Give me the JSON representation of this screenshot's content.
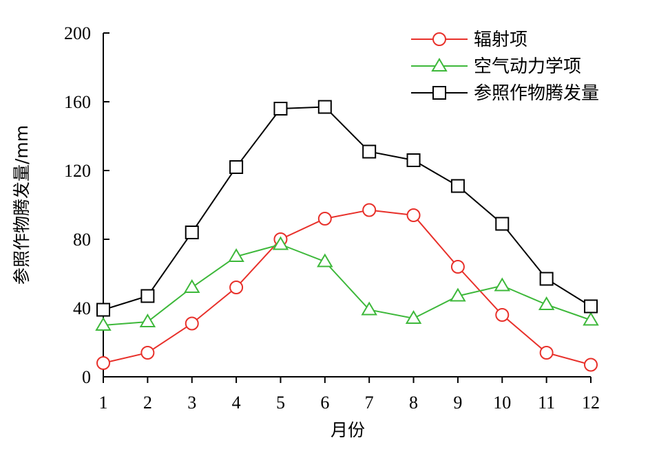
{
  "chart_data": {
    "type": "line",
    "title": "",
    "xlabel": "月份",
    "ylabel": "参照作物腾发量/mm",
    "x": [
      1,
      2,
      3,
      4,
      5,
      6,
      7,
      8,
      9,
      10,
      11,
      12
    ],
    "xlim": [
      1,
      12
    ],
    "ylim": [
      0,
      200
    ],
    "yticks": [
      0,
      40,
      80,
      120,
      160,
      200
    ],
    "grid": false,
    "legend_position": "top-right",
    "series": [
      {
        "name": "辐射项",
        "marker": "circle",
        "color": "#e8302a",
        "values": [
          8,
          14,
          31,
          52,
          80,
          92,
          97,
          94,
          64,
          36,
          14,
          7
        ]
      },
      {
        "name": "空气动力学项",
        "marker": "triangle",
        "color": "#3db83a",
        "values": [
          30,
          32,
          52,
          70,
          77,
          67,
          39,
          34,
          47,
          53,
          42,
          33
        ]
      },
      {
        "name": "参照作物腾发量",
        "marker": "square",
        "color": "#000000",
        "values": [
          39,
          47,
          84,
          122,
          156,
          157,
          131,
          126,
          111,
          89,
          57,
          41
        ]
      }
    ]
  }
}
